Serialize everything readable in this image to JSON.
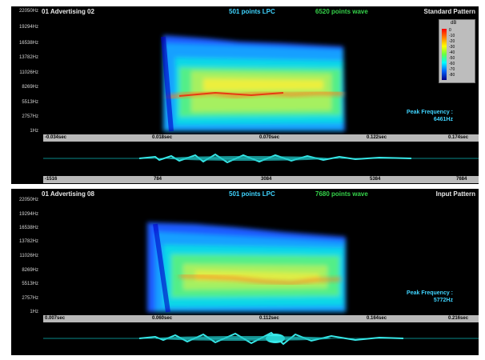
{
  "top": {
    "title": "01 Advertising 02",
    "lpc_label": "501 points LPC",
    "wave_label": "6520 points wave",
    "pattern_label": "Standard Pattern",
    "y_ticks": [
      "22050Hz",
      "19294Hz",
      "16538Hz",
      "13782Hz",
      "11026Hz",
      "8269Hz",
      "5513Hz",
      "2757Hz",
      "1Hz"
    ],
    "time_ticks": [
      "-0.034sec",
      "0.018sec",
      "0.070sec",
      "0.122sec",
      "0.174sec"
    ],
    "sample_ticks": [
      "-1516",
      "784",
      "3084",
      "5384",
      "7684"
    ],
    "peak_label": "Peak Frequency :",
    "peak_value": "6461Hz",
    "colorbar": {
      "unit": "dB",
      "labels": [
        "0",
        "-10",
        "-20",
        "-30",
        "-40",
        "-50",
        "-60",
        "-70",
        "-80"
      ]
    }
  },
  "bottom": {
    "title": "01 Advertising 08",
    "lpc_label": "501 points LPC",
    "wave_label": "7680 points wave",
    "pattern_label": "Input Pattern",
    "y_ticks": [
      "22050Hz",
      "19294Hz",
      "16538Hz",
      "13782Hz",
      "11026Hz",
      "8269Hz",
      "5513Hz",
      "2757Hz",
      "1Hz"
    ],
    "time_ticks": [
      "0.007sec",
      "0.060sec",
      "0.112sec",
      "0.164sec",
      "0.216sec"
    ],
    "peak_label": "Peak Frequency :",
    "peak_value": "5772Hz"
  },
  "colors": {
    "panel_bg": "#000000",
    "lpc_text": "#3fd4ff",
    "wave_text": "#35d24a",
    "axis_bar": "#b9b9b9"
  }
}
